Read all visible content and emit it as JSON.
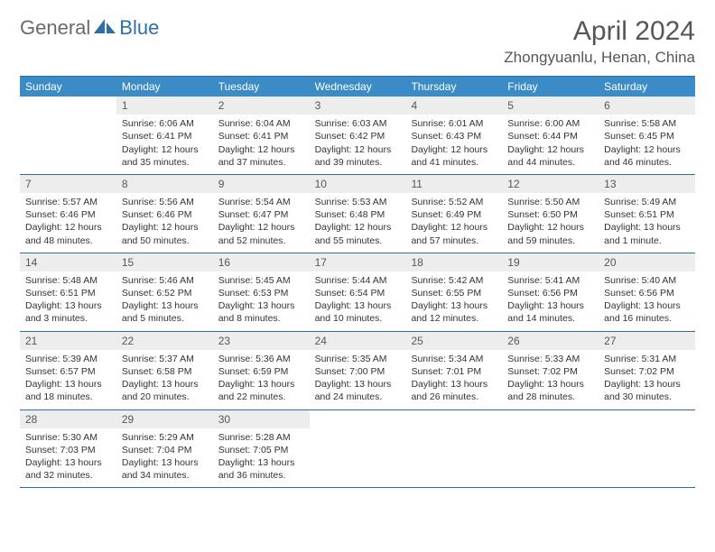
{
  "logo": {
    "general": "General",
    "blue": "Blue"
  },
  "title": "April 2024",
  "location": "Zhongyuanlu, Henan, China",
  "colors": {
    "header_bg": "#3b8bc6",
    "border": "#2d6ea6",
    "daynum_bg": "#ededed",
    "text": "#333333",
    "title_text": "#565656",
    "logo_gray": "#6a6a6a",
    "logo_blue": "#2f6fa8"
  },
  "weekdays": [
    "Sunday",
    "Monday",
    "Tuesday",
    "Wednesday",
    "Thursday",
    "Friday",
    "Saturday"
  ],
  "weeks": [
    [
      {
        "day": "",
        "sunrise": "",
        "sunset": "",
        "daylight1": "",
        "daylight2": ""
      },
      {
        "day": "1",
        "sunrise": "Sunrise: 6:06 AM",
        "sunset": "Sunset: 6:41 PM",
        "daylight1": "Daylight: 12 hours",
        "daylight2": "and 35 minutes."
      },
      {
        "day": "2",
        "sunrise": "Sunrise: 6:04 AM",
        "sunset": "Sunset: 6:41 PM",
        "daylight1": "Daylight: 12 hours",
        "daylight2": "and 37 minutes."
      },
      {
        "day": "3",
        "sunrise": "Sunrise: 6:03 AM",
        "sunset": "Sunset: 6:42 PM",
        "daylight1": "Daylight: 12 hours",
        "daylight2": "and 39 minutes."
      },
      {
        "day": "4",
        "sunrise": "Sunrise: 6:01 AM",
        "sunset": "Sunset: 6:43 PM",
        "daylight1": "Daylight: 12 hours",
        "daylight2": "and 41 minutes."
      },
      {
        "day": "5",
        "sunrise": "Sunrise: 6:00 AM",
        "sunset": "Sunset: 6:44 PM",
        "daylight1": "Daylight: 12 hours",
        "daylight2": "and 44 minutes."
      },
      {
        "day": "6",
        "sunrise": "Sunrise: 5:58 AM",
        "sunset": "Sunset: 6:45 PM",
        "daylight1": "Daylight: 12 hours",
        "daylight2": "and 46 minutes."
      }
    ],
    [
      {
        "day": "7",
        "sunrise": "Sunrise: 5:57 AM",
        "sunset": "Sunset: 6:46 PM",
        "daylight1": "Daylight: 12 hours",
        "daylight2": "and 48 minutes."
      },
      {
        "day": "8",
        "sunrise": "Sunrise: 5:56 AM",
        "sunset": "Sunset: 6:46 PM",
        "daylight1": "Daylight: 12 hours",
        "daylight2": "and 50 minutes."
      },
      {
        "day": "9",
        "sunrise": "Sunrise: 5:54 AM",
        "sunset": "Sunset: 6:47 PM",
        "daylight1": "Daylight: 12 hours",
        "daylight2": "and 52 minutes."
      },
      {
        "day": "10",
        "sunrise": "Sunrise: 5:53 AM",
        "sunset": "Sunset: 6:48 PM",
        "daylight1": "Daylight: 12 hours",
        "daylight2": "and 55 minutes."
      },
      {
        "day": "11",
        "sunrise": "Sunrise: 5:52 AM",
        "sunset": "Sunset: 6:49 PM",
        "daylight1": "Daylight: 12 hours",
        "daylight2": "and 57 minutes."
      },
      {
        "day": "12",
        "sunrise": "Sunrise: 5:50 AM",
        "sunset": "Sunset: 6:50 PM",
        "daylight1": "Daylight: 12 hours",
        "daylight2": "and 59 minutes."
      },
      {
        "day": "13",
        "sunrise": "Sunrise: 5:49 AM",
        "sunset": "Sunset: 6:51 PM",
        "daylight1": "Daylight: 13 hours",
        "daylight2": "and 1 minute."
      }
    ],
    [
      {
        "day": "14",
        "sunrise": "Sunrise: 5:48 AM",
        "sunset": "Sunset: 6:51 PM",
        "daylight1": "Daylight: 13 hours",
        "daylight2": "and 3 minutes."
      },
      {
        "day": "15",
        "sunrise": "Sunrise: 5:46 AM",
        "sunset": "Sunset: 6:52 PM",
        "daylight1": "Daylight: 13 hours",
        "daylight2": "and 5 minutes."
      },
      {
        "day": "16",
        "sunrise": "Sunrise: 5:45 AM",
        "sunset": "Sunset: 6:53 PM",
        "daylight1": "Daylight: 13 hours",
        "daylight2": "and 8 minutes."
      },
      {
        "day": "17",
        "sunrise": "Sunrise: 5:44 AM",
        "sunset": "Sunset: 6:54 PM",
        "daylight1": "Daylight: 13 hours",
        "daylight2": "and 10 minutes."
      },
      {
        "day": "18",
        "sunrise": "Sunrise: 5:42 AM",
        "sunset": "Sunset: 6:55 PM",
        "daylight1": "Daylight: 13 hours",
        "daylight2": "and 12 minutes."
      },
      {
        "day": "19",
        "sunrise": "Sunrise: 5:41 AM",
        "sunset": "Sunset: 6:56 PM",
        "daylight1": "Daylight: 13 hours",
        "daylight2": "and 14 minutes."
      },
      {
        "day": "20",
        "sunrise": "Sunrise: 5:40 AM",
        "sunset": "Sunset: 6:56 PM",
        "daylight1": "Daylight: 13 hours",
        "daylight2": "and 16 minutes."
      }
    ],
    [
      {
        "day": "21",
        "sunrise": "Sunrise: 5:39 AM",
        "sunset": "Sunset: 6:57 PM",
        "daylight1": "Daylight: 13 hours",
        "daylight2": "and 18 minutes."
      },
      {
        "day": "22",
        "sunrise": "Sunrise: 5:37 AM",
        "sunset": "Sunset: 6:58 PM",
        "daylight1": "Daylight: 13 hours",
        "daylight2": "and 20 minutes."
      },
      {
        "day": "23",
        "sunrise": "Sunrise: 5:36 AM",
        "sunset": "Sunset: 6:59 PM",
        "daylight1": "Daylight: 13 hours",
        "daylight2": "and 22 minutes."
      },
      {
        "day": "24",
        "sunrise": "Sunrise: 5:35 AM",
        "sunset": "Sunset: 7:00 PM",
        "daylight1": "Daylight: 13 hours",
        "daylight2": "and 24 minutes."
      },
      {
        "day": "25",
        "sunrise": "Sunrise: 5:34 AM",
        "sunset": "Sunset: 7:01 PM",
        "daylight1": "Daylight: 13 hours",
        "daylight2": "and 26 minutes."
      },
      {
        "day": "26",
        "sunrise": "Sunrise: 5:33 AM",
        "sunset": "Sunset: 7:02 PM",
        "daylight1": "Daylight: 13 hours",
        "daylight2": "and 28 minutes."
      },
      {
        "day": "27",
        "sunrise": "Sunrise: 5:31 AM",
        "sunset": "Sunset: 7:02 PM",
        "daylight1": "Daylight: 13 hours",
        "daylight2": "and 30 minutes."
      }
    ],
    [
      {
        "day": "28",
        "sunrise": "Sunrise: 5:30 AM",
        "sunset": "Sunset: 7:03 PM",
        "daylight1": "Daylight: 13 hours",
        "daylight2": "and 32 minutes."
      },
      {
        "day": "29",
        "sunrise": "Sunrise: 5:29 AM",
        "sunset": "Sunset: 7:04 PM",
        "daylight1": "Daylight: 13 hours",
        "daylight2": "and 34 minutes."
      },
      {
        "day": "30",
        "sunrise": "Sunrise: 5:28 AM",
        "sunset": "Sunset: 7:05 PM",
        "daylight1": "Daylight: 13 hours",
        "daylight2": "and 36 minutes."
      },
      {
        "day": "",
        "sunrise": "",
        "sunset": "",
        "daylight1": "",
        "daylight2": ""
      },
      {
        "day": "",
        "sunrise": "",
        "sunset": "",
        "daylight1": "",
        "daylight2": ""
      },
      {
        "day": "",
        "sunrise": "",
        "sunset": "",
        "daylight1": "",
        "daylight2": ""
      },
      {
        "day": "",
        "sunrise": "",
        "sunset": "",
        "daylight1": "",
        "daylight2": ""
      }
    ]
  ]
}
